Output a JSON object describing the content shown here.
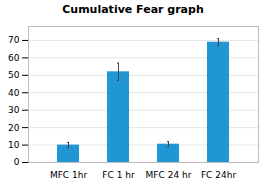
{
  "chart_data": {
    "type": "bar",
    "title": "Cumulative Fear graph",
    "categories": [
      "MFC 1hr",
      "FC 1 hr",
      "MFC 24 hr",
      "FC 24hr"
    ],
    "values": [
      10,
      52,
      10.5,
      69
    ],
    "errors": [
      1.5,
      5,
      1.5,
      2
    ],
    "color": "#2196d4",
    "ylim": [
      0,
      78
    ],
    "yticks": [
      0,
      10,
      20,
      30,
      40,
      50,
      60,
      70
    ],
    "grid": true
  }
}
